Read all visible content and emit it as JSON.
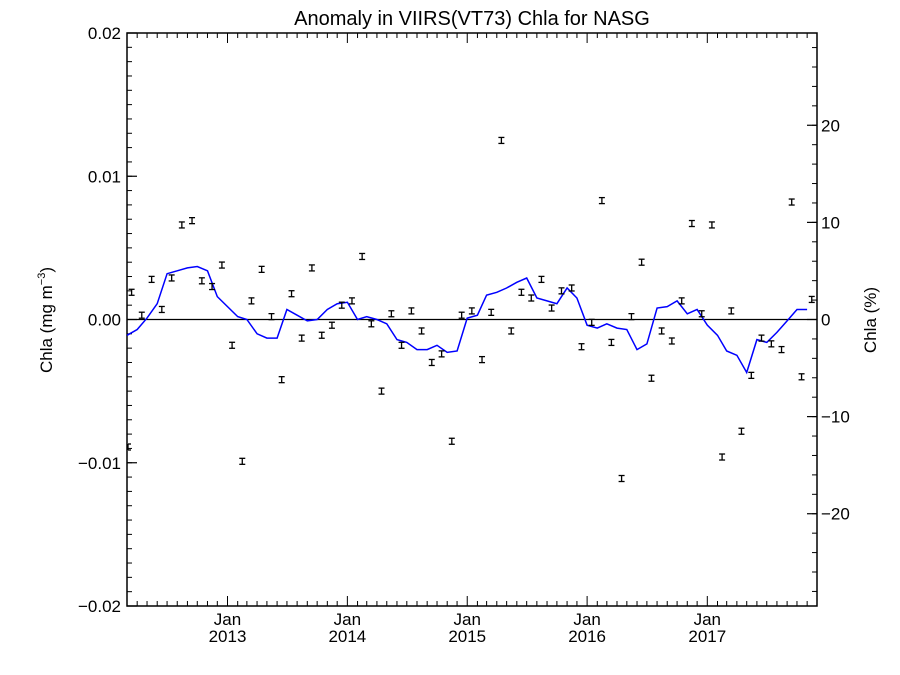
{
  "chart_data": {
    "type": "scatter",
    "title": "Anomaly in VIIRS(VT73) Chla for NASG",
    "ylabel_left_main": "Chla (mg m",
    "ylabel_left_sup": "−3",
    "ylabel_left_close": ")",
    "ylabel_right": "Chla (%)",
    "xlim": [
      "2012-03-01",
      "2017-12-01"
    ],
    "ylim_left": [
      -0.02,
      0.02
    ],
    "ylim_right": [
      -29.5,
      29.5
    ],
    "left_ticks": [
      {
        "value": -0.02,
        "label": "−0.02"
      },
      {
        "value": -0.01,
        "label": "−0.01"
      },
      {
        "value": 0.0,
        "label": "0.00"
      },
      {
        "value": 0.01,
        "label": "0.01"
      },
      {
        "value": 0.02,
        "label": "0.02"
      }
    ],
    "right_ticks": [
      {
        "value": -20,
        "label": "−20"
      },
      {
        "value": -10,
        "label": "−10"
      },
      {
        "value": 0,
        "label": "0"
      },
      {
        "value": 10,
        "label": "10"
      },
      {
        "value": 20,
        "label": "20"
      }
    ],
    "x_ticks": [
      {
        "date": "2013-01-01",
        "month": "Jan",
        "year": "2013"
      },
      {
        "date": "2014-01-01",
        "month": "Jan",
        "year": "2014"
      },
      {
        "date": "2015-01-01",
        "month": "Jan",
        "year": "2015"
      },
      {
        "date": "2016-01-01",
        "month": "Jan",
        "year": "2016"
      },
      {
        "date": "2017-01-01",
        "month": "Jan",
        "year": "2017"
      }
    ],
    "zero_line": true,
    "grid": false,
    "series": [
      {
        "kind": "monthly anomaly with error bars",
        "color": "#000000",
        "points": [
          {
            "date": "2012-02-15",
            "y": -0.0089
          },
          {
            "date": "2012-03-15",
            "y": 0.0019
          },
          {
            "date": "2012-04-15",
            "y": 0.0003
          },
          {
            "date": "2012-05-15",
            "y": 0.0028
          },
          {
            "date": "2012-06-15",
            "y": 0.0007
          },
          {
            "date": "2012-07-15",
            "y": 0.0029
          },
          {
            "date": "2012-08-15",
            "y": 0.0066
          },
          {
            "date": "2012-09-15",
            "y": 0.0069
          },
          {
            "date": "2012-10-15",
            "y": 0.0027
          },
          {
            "date": "2012-11-15",
            "y": 0.0023
          },
          {
            "date": "2012-12-15",
            "y": 0.0038
          },
          {
            "date": "2013-01-15",
            "y": -0.0018
          },
          {
            "date": "2013-02-15",
            "y": -0.0099
          },
          {
            "date": "2013-03-15",
            "y": 0.0013
          },
          {
            "date": "2013-04-15",
            "y": 0.0035
          },
          {
            "date": "2013-05-15",
            "y": 0.0002
          },
          {
            "date": "2013-06-15",
            "y": -0.0042
          },
          {
            "date": "2013-07-15",
            "y": 0.0018
          },
          {
            "date": "2013-08-15",
            "y": -0.0013
          },
          {
            "date": "2013-09-15",
            "y": 0.0036
          },
          {
            "date": "2013-10-15",
            "y": -0.0011
          },
          {
            "date": "2013-11-15",
            "y": -0.0004
          },
          {
            "date": "2013-12-15",
            "y": 0.001
          },
          {
            "date": "2014-01-15",
            "y": 0.0013
          },
          {
            "date": "2014-02-15",
            "y": 0.0044
          },
          {
            "date": "2014-03-15",
            "y": -0.0003
          },
          {
            "date": "2014-04-15",
            "y": -0.005
          },
          {
            "date": "2014-05-15",
            "y": 0.0004
          },
          {
            "date": "2014-06-15",
            "y": -0.0018
          },
          {
            "date": "2014-07-15",
            "y": 0.0006
          },
          {
            "date": "2014-08-15",
            "y": -0.0008
          },
          {
            "date": "2014-09-15",
            "y": -0.003
          },
          {
            "date": "2014-10-15",
            "y": -0.0024
          },
          {
            "date": "2014-11-15",
            "y": -0.0085
          },
          {
            "date": "2014-12-15",
            "y": 0.0003
          },
          {
            "date": "2015-01-15",
            "y": 0.0006
          },
          {
            "date": "2015-02-15",
            "y": -0.0028
          },
          {
            "date": "2015-03-15",
            "y": 0.0005
          },
          {
            "date": "2015-04-15",
            "y": 0.0125
          },
          {
            "date": "2015-05-15",
            "y": -0.0008
          },
          {
            "date": "2015-06-15",
            "y": 0.0019
          },
          {
            "date": "2015-07-15",
            "y": 0.0015
          },
          {
            "date": "2015-08-15",
            "y": 0.0028
          },
          {
            "date": "2015-09-15",
            "y": 0.0008
          },
          {
            "date": "2015-10-15",
            "y": 0.002
          },
          {
            "date": "2015-11-15",
            "y": 0.0022
          },
          {
            "date": "2015-12-15",
            "y": -0.0019
          },
          {
            "date": "2016-01-15",
            "y": -0.0002
          },
          {
            "date": "2016-02-15",
            "y": 0.0083
          },
          {
            "date": "2016-03-15",
            "y": -0.0016
          },
          {
            "date": "2016-04-15",
            "y": -0.0111
          },
          {
            "date": "2016-05-15",
            "y": 0.0002
          },
          {
            "date": "2016-06-15",
            "y": 0.004
          },
          {
            "date": "2016-07-15",
            "y": -0.0041
          },
          {
            "date": "2016-08-15",
            "y": -0.0008
          },
          {
            "date": "2016-09-15",
            "y": -0.0015
          },
          {
            "date": "2016-10-15",
            "y": 0.0013
          },
          {
            "date": "2016-11-15",
            "y": 0.0067
          },
          {
            "date": "2016-12-15",
            "y": 0.0004
          },
          {
            "date": "2017-01-15",
            "y": 0.0066
          },
          {
            "date": "2017-02-15",
            "y": -0.0096
          },
          {
            "date": "2017-03-15",
            "y": 0.0006
          },
          {
            "date": "2017-04-15",
            "y": -0.0078
          },
          {
            "date": "2017-05-15",
            "y": -0.0039
          },
          {
            "date": "2017-06-15",
            "y": -0.0013
          },
          {
            "date": "2017-07-15",
            "y": -0.0017
          },
          {
            "date": "2017-08-15",
            "y": -0.0021
          },
          {
            "date": "2017-09-15",
            "y": 0.0082
          },
          {
            "date": "2017-10-15",
            "y": -0.004
          },
          {
            "date": "2017-11-15",
            "y": 0.0014
          }
        ]
      },
      {
        "kind": "smoothed anomaly line",
        "color": "#0000ff",
        "points": [
          {
            "date": "2012-03-01",
            "y": -0.0011
          },
          {
            "date": "2012-04-01",
            "y": -0.0007
          },
          {
            "date": "2012-05-01",
            "y": 0.0001
          },
          {
            "date": "2012-06-01",
            "y": 0.0011
          },
          {
            "date": "2012-07-01",
            "y": 0.0032
          },
          {
            "date": "2012-08-01",
            "y": 0.0034
          },
          {
            "date": "2012-09-01",
            "y": 0.0036
          },
          {
            "date": "2012-10-01",
            "y": 0.0037
          },
          {
            "date": "2012-11-01",
            "y": 0.0034
          },
          {
            "date": "2012-12-01",
            "y": 0.0016
          },
          {
            "date": "2013-01-01",
            "y": 0.0009
          },
          {
            "date": "2013-02-01",
            "y": 0.0002
          },
          {
            "date": "2013-03-01",
            "y": 0.0
          },
          {
            "date": "2013-04-01",
            "y": -0.001
          },
          {
            "date": "2013-05-01",
            "y": -0.0013
          },
          {
            "date": "2013-06-01",
            "y": -0.0013
          },
          {
            "date": "2013-07-01",
            "y": 0.0007
          },
          {
            "date": "2013-08-01",
            "y": 0.0003
          },
          {
            "date": "2013-09-01",
            "y": -0.0001
          },
          {
            "date": "2013-10-01",
            "y": 0.0
          },
          {
            "date": "2013-11-01",
            "y": 0.0007
          },
          {
            "date": "2013-12-01",
            "y": 0.0011
          },
          {
            "date": "2014-01-01",
            "y": 0.0012
          },
          {
            "date": "2014-02-01",
            "y": 0.0
          },
          {
            "date": "2014-03-01",
            "y": 0.0002
          },
          {
            "date": "2014-04-01",
            "y": 0.0
          },
          {
            "date": "2014-05-01",
            "y": -0.0003
          },
          {
            "date": "2014-06-01",
            "y": -0.0014
          },
          {
            "date": "2014-07-01",
            "y": -0.0016
          },
          {
            "date": "2014-08-01",
            "y": -0.0021
          },
          {
            "date": "2014-09-01",
            "y": -0.0021
          },
          {
            "date": "2014-10-01",
            "y": -0.0018
          },
          {
            "date": "2014-11-01",
            "y": -0.0023
          },
          {
            "date": "2014-12-01",
            "y": -0.0022
          },
          {
            "date": "2015-01-01",
            "y": 0.0001
          },
          {
            "date": "2015-02-01",
            "y": 0.0003
          },
          {
            "date": "2015-03-01",
            "y": 0.0017
          },
          {
            "date": "2015-04-01",
            "y": 0.0019
          },
          {
            "date": "2015-05-01",
            "y": 0.0022
          },
          {
            "date": "2015-06-01",
            "y": 0.0026
          },
          {
            "date": "2015-07-01",
            "y": 0.0029
          },
          {
            "date": "2015-08-01",
            "y": 0.0015
          },
          {
            "date": "2015-09-01",
            "y": 0.0013
          },
          {
            "date": "2015-10-01",
            "y": 0.0011
          },
          {
            "date": "2015-11-01",
            "y": 0.0022
          },
          {
            "date": "2015-12-01",
            "y": 0.0015
          },
          {
            "date": "2016-01-01",
            "y": -0.0004
          },
          {
            "date": "2016-02-01",
            "y": -0.0006
          },
          {
            "date": "2016-03-01",
            "y": -0.0003
          },
          {
            "date": "2016-04-01",
            "y": -0.0006
          },
          {
            "date": "2016-05-01",
            "y": -0.0007
          },
          {
            "date": "2016-06-01",
            "y": -0.0021
          },
          {
            "date": "2016-07-01",
            "y": -0.0017
          },
          {
            "date": "2016-08-01",
            "y": 0.0008
          },
          {
            "date": "2016-09-01",
            "y": 0.0009
          },
          {
            "date": "2016-10-01",
            "y": 0.0013
          },
          {
            "date": "2016-11-01",
            "y": 0.0004
          },
          {
            "date": "2016-12-01",
            "y": 0.0007
          },
          {
            "date": "2017-01-01",
            "y": -0.0004
          },
          {
            "date": "2017-02-01",
            "y": -0.0011
          },
          {
            "date": "2017-03-01",
            "y": -0.0022
          },
          {
            "date": "2017-04-01",
            "y": -0.0025
          },
          {
            "date": "2017-05-01",
            "y": -0.0037
          },
          {
            "date": "2017-06-01",
            "y": -0.0014
          },
          {
            "date": "2017-07-01",
            "y": -0.0016
          },
          {
            "date": "2017-08-01",
            "y": -0.0009
          },
          {
            "date": "2017-09-01",
            "y": -0.0001
          },
          {
            "date": "2017-10-01",
            "y": 0.0007
          },
          {
            "date": "2017-11-01",
            "y": 0.0007
          }
        ]
      }
    ]
  }
}
